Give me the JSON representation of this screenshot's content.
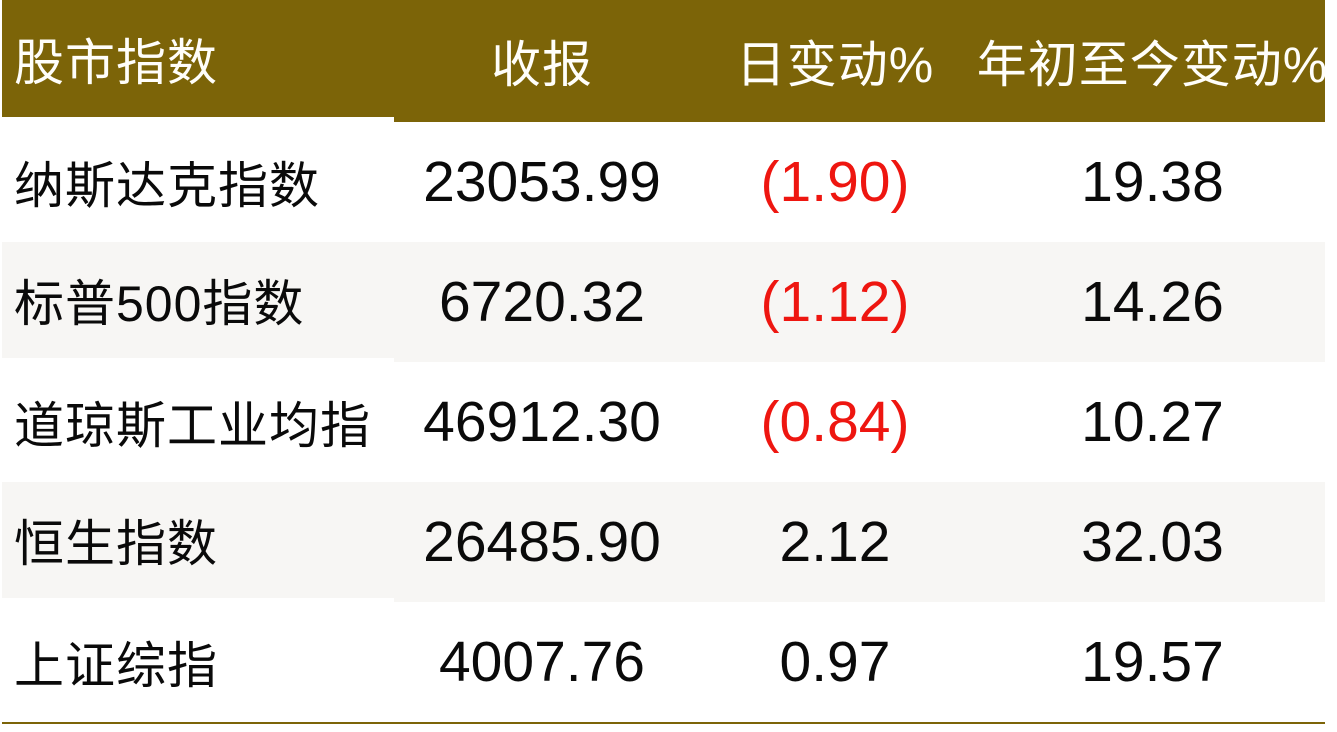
{
  "table": {
    "headers": {
      "index": "股市指数",
      "close": "收报",
      "daily_change": "日变动%",
      "ytd_change": "年初至今变动%"
    },
    "rows": [
      {
        "name": "纳斯达克指数",
        "close": "23053.99",
        "daily_change": "(1.90)",
        "ytd": "19.38"
      },
      {
        "name": "标普500指数",
        "close": "6720.32",
        "daily_change": "(1.12)",
        "ytd": "14.26"
      },
      {
        "name": "道琼斯工业均指",
        "close": "46912.30",
        "daily_change": "(0.84)",
        "ytd": "10.27"
      },
      {
        "name": "恒生指数",
        "close": "26485.90",
        "daily_change": "2.12",
        "ytd": "32.03"
      },
      {
        "name": "上证综指",
        "close": "4007.76",
        "daily_change": "0.97",
        "ytd": "19.57"
      }
    ]
  },
  "colors": {
    "header_background": "#7c6408",
    "header_text": "#fffefa",
    "alt_row_background": "#f7f6f4",
    "negative_value": "#ee1610",
    "positive_value": "#0a0a0a",
    "bottom_rule": "#7c6408"
  },
  "chart_data": {
    "type": "table",
    "title": "",
    "columns": [
      "股市指数",
      "收报",
      "日变动%",
      "年初至今变动%"
    ],
    "rows": [
      [
        "纳斯达克指数",
        23053.99,
        -1.9,
        19.38
      ],
      [
        "标普500指数",
        6720.32,
        -1.12,
        14.26
      ],
      [
        "道琼斯工业均指",
        46912.3,
        -0.84,
        10.27
      ],
      [
        "恒生指数",
        26485.9,
        2.12,
        32.03
      ],
      [
        "上证综指",
        4007.76,
        0.97,
        19.57
      ]
    ],
    "notes": "Negative daily % changes are rendered in red inside parentheses; positive values in black."
  }
}
